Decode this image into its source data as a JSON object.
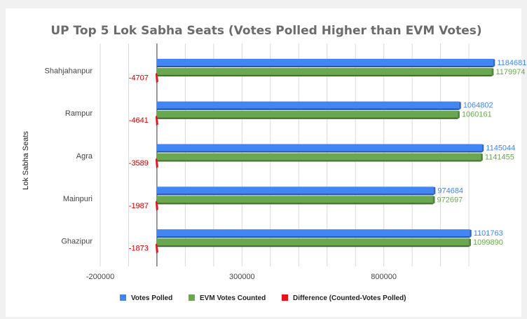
{
  "chart_data": {
    "type": "bar",
    "orientation": "horizontal",
    "title": "UP Top 5 Lok Sabha Seats (Votes Polled Higher than EVM Votes)",
    "xlabel": "",
    "ylabel": "Lok Sabha Seats",
    "categories": [
      "Shahjahanpur",
      "Rampur",
      "Agra",
      "Mainpuri",
      "Ghazipur"
    ],
    "series": [
      {
        "name": "Votes Polled",
        "color": "#4285f4",
        "label_color": "#4285f4",
        "values": [
          1184681,
          1064802,
          1145044,
          974684,
          1101763
        ]
      },
      {
        "name": "EVM Votes Counted",
        "color": "#6aa84f",
        "label_color": "#6aa84f",
        "values": [
          1179974,
          1060161,
          1141455,
          972697,
          1099890
        ]
      },
      {
        "name": "Difference (Counted-Votes Polled)",
        "color": "#e8101a",
        "label_color": "#cc0000",
        "values": [
          -4707,
          -4641,
          -3589,
          -1987,
          -1873
        ]
      }
    ],
    "xlim": [
      -200000,
      1300000
    ],
    "xticks": [
      -200000,
      300000,
      800000
    ],
    "grid": true,
    "legend_position": "bottom"
  }
}
